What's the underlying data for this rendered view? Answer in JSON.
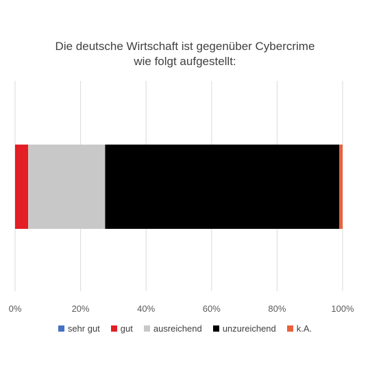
{
  "chart_data": {
    "type": "bar",
    "orientation": "horizontal",
    "stacked": true,
    "title_lines": [
      "Die deutsche Wirtschaft ist gegenüber Cybercrime",
      "wie folgt aufgestellt:"
    ],
    "categories": [
      ""
    ],
    "series": [
      {
        "name": "sehr gut",
        "values": [
          0
        ],
        "color": "#4472C4"
      },
      {
        "name": "gut",
        "values": [
          4
        ],
        "color": "#E31E24"
      },
      {
        "name": "ausreichend",
        "values": [
          23.5
        ],
        "color": "#C8C8C8"
      },
      {
        "name": "unzureichend",
        "values": [
          71.5
        ],
        "color": "#000000"
      },
      {
        "name": "k.A.",
        "values": [
          1
        ],
        "color": "#E8603C"
      }
    ],
    "xlim": [
      0,
      100
    ],
    "x_ticks": [
      "0%",
      "20%",
      "40%",
      "60%",
      "80%",
      "100%"
    ],
    "grid": true,
    "legend_position": "bottom"
  }
}
